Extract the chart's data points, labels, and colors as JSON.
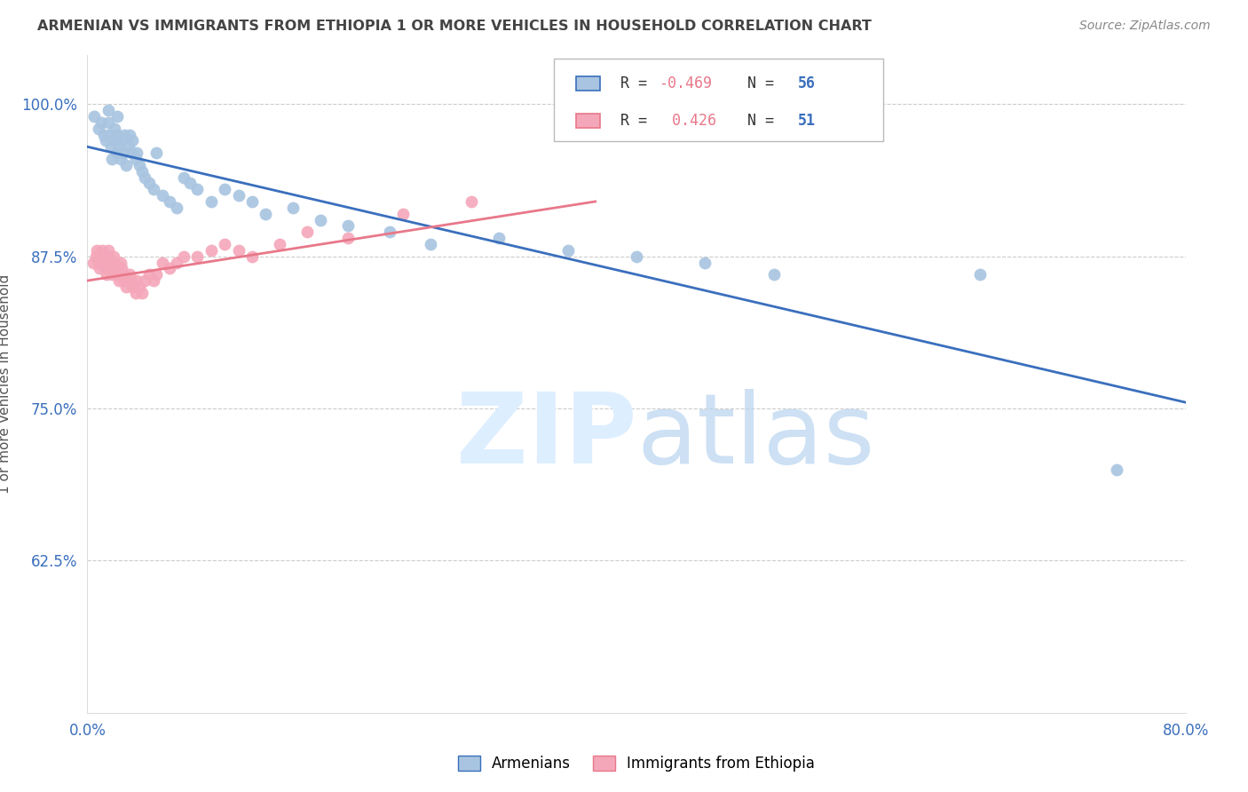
{
  "title": "ARMENIAN VS IMMIGRANTS FROM ETHIOPIA 1 OR MORE VEHICLES IN HOUSEHOLD CORRELATION CHART",
  "source": "Source: ZipAtlas.com",
  "ylabel": "1 or more Vehicles in Household",
  "xlim": [
    0.0,
    0.8
  ],
  "ylim": [
    0.5,
    1.04
  ],
  "yticks": [
    0.625,
    0.75,
    0.875,
    1.0
  ],
  "ytick_labels": [
    "62.5%",
    "75.0%",
    "87.5%",
    "100.0%"
  ],
  "xticks": [
    0.0,
    0.1,
    0.2,
    0.3,
    0.4,
    0.5,
    0.6,
    0.7,
    0.8
  ],
  "xtick_labels": [
    "0.0%",
    "",
    "",
    "",
    "",
    "",
    "",
    "",
    "80.0%"
  ],
  "armenian_color": "#a8c4e0",
  "ethiopia_color": "#f4a7b9",
  "armenian_line_color": "#3a6fbd",
  "ethiopia_line_color": "#e8788a",
  "legend_armenian": "Armenians",
  "legend_ethiopia": "Immigrants from Ethiopia",
  "R_armenian": -0.469,
  "N_armenian": 56,
  "R_ethiopia": 0.426,
  "N_ethiopia": 51,
  "armenian_x": [
    0.005,
    0.008,
    0.01,
    0.012,
    0.013,
    0.015,
    0.015,
    0.016,
    0.017,
    0.018,
    0.019,
    0.02,
    0.021,
    0.022,
    0.022,
    0.023,
    0.024,
    0.025,
    0.026,
    0.027,
    0.028,
    0.03,
    0.031,
    0.032,
    0.033,
    0.035,
    0.036,
    0.038,
    0.04,
    0.042,
    0.045,
    0.048,
    0.05,
    0.055,
    0.06,
    0.065,
    0.07,
    0.075,
    0.08,
    0.09,
    0.1,
    0.11,
    0.12,
    0.13,
    0.15,
    0.17,
    0.19,
    0.22,
    0.25,
    0.3,
    0.35,
    0.4,
    0.45,
    0.5,
    0.65,
    0.75
  ],
  "armenian_y": [
    0.99,
    0.98,
    0.985,
    0.975,
    0.97,
    0.995,
    0.985,
    0.975,
    0.965,
    0.955,
    0.97,
    0.98,
    0.96,
    0.975,
    0.99,
    0.965,
    0.955,
    0.97,
    0.96,
    0.975,
    0.95,
    0.965,
    0.975,
    0.96,
    0.97,
    0.955,
    0.96,
    0.95,
    0.945,
    0.94,
    0.935,
    0.93,
    0.96,
    0.925,
    0.92,
    0.915,
    0.94,
    0.935,
    0.93,
    0.92,
    0.93,
    0.925,
    0.92,
    0.91,
    0.915,
    0.905,
    0.9,
    0.895,
    0.885,
    0.89,
    0.88,
    0.875,
    0.87,
    0.86,
    0.86,
    0.7
  ],
  "ethiopia_x": [
    0.004,
    0.006,
    0.007,
    0.008,
    0.009,
    0.01,
    0.011,
    0.012,
    0.013,
    0.014,
    0.015,
    0.015,
    0.016,
    0.017,
    0.018,
    0.019,
    0.02,
    0.021,
    0.022,
    0.023,
    0.024,
    0.025,
    0.026,
    0.027,
    0.028,
    0.03,
    0.031,
    0.032,
    0.033,
    0.035,
    0.036,
    0.038,
    0.04,
    0.042,
    0.045,
    0.048,
    0.05,
    0.055,
    0.06,
    0.065,
    0.07,
    0.08,
    0.09,
    0.1,
    0.11,
    0.12,
    0.14,
    0.16,
    0.19,
    0.23,
    0.28
  ],
  "ethiopia_y": [
    0.87,
    0.875,
    0.88,
    0.87,
    0.865,
    0.875,
    0.88,
    0.87,
    0.865,
    0.86,
    0.875,
    0.88,
    0.87,
    0.865,
    0.86,
    0.875,
    0.87,
    0.865,
    0.86,
    0.855,
    0.87,
    0.865,
    0.86,
    0.855,
    0.85,
    0.855,
    0.86,
    0.855,
    0.85,
    0.845,
    0.855,
    0.85,
    0.845,
    0.855,
    0.86,
    0.855,
    0.86,
    0.87,
    0.865,
    0.87,
    0.875,
    0.875,
    0.88,
    0.885,
    0.88,
    0.875,
    0.885,
    0.895,
    0.89,
    0.91,
    0.92
  ],
  "background_color": "#ffffff",
  "grid_color": "#cccccc",
  "title_color": "#444444",
  "axis_color": "#3a6fbd",
  "watermark_color": "#ddeeff"
}
